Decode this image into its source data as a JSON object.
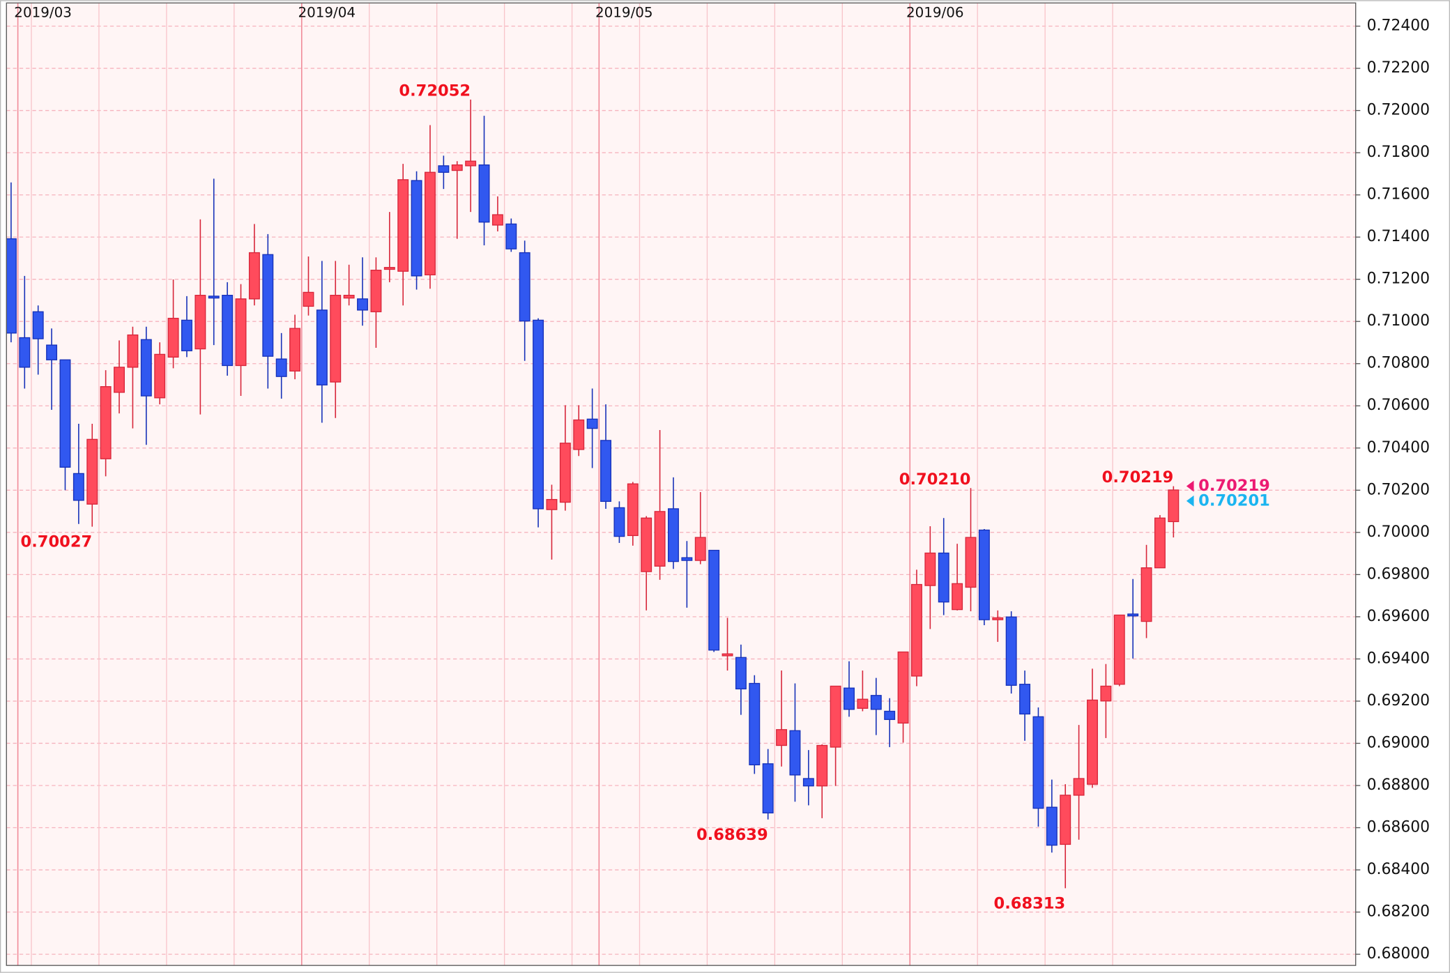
{
  "chart_data": {
    "type": "candlestick",
    "categories": [
      null,
      "2019/03",
      null,
      null,
      null,
      null,
      null,
      null,
      null,
      null,
      null,
      null,
      null,
      null,
      null,
      null,
      null,
      null,
      null,
      null,
      null,
      null,
      "2019/04",
      null,
      null,
      null,
      null,
      null,
      null,
      null,
      null,
      null,
      null,
      null,
      null,
      null,
      null,
      null,
      null,
      null,
      null,
      null,
      null,
      null,
      "2019/05",
      null,
      null,
      null,
      null,
      null,
      null,
      null,
      null,
      null,
      null,
      null,
      null,
      null,
      null,
      null,
      null,
      null,
      null,
      null,
      null,
      null,
      null,
      "2019/06",
      null,
      null,
      null,
      null,
      null,
      null,
      null,
      null,
      null,
      null,
      null,
      null,
      null,
      null,
      null,
      null,
      null,
      null,
      null
    ],
    "open": [
      0.71392,
      0.70923,
      0.71046,
      0.70888,
      0.70818,
      0.70279,
      0.70134,
      0.70349,
      0.70664,
      0.70783,
      0.70914,
      0.70638,
      0.70831,
      0.71006,
      0.7087,
      0.7112,
      0.71124,
      0.70791,
      0.71107,
      0.71317,
      0.70822,
      0.70765,
      0.71072,
      0.71054,
      0.70713,
      0.71111,
      0.71107,
      0.71046,
      0.71247,
      0.71238,
      0.71668,
      0.71221,
      0.71738,
      0.71716,
      0.71738,
      0.71742,
      0.71457,
      0.71462,
      0.71326,
      0.71006,
      0.70108,
      0.70143,
      0.70393,
      0.70537,
      0.70436,
      0.70117,
      0.69985,
      0.69814,
      0.6984,
      0.70112,
      0.6988,
      0.69867,
      0.69915,
      0.69415,
      0.69407,
      0.69284,
      0.68903,
      0.6899,
      0.6906,
      0.68833,
      0.68798,
      0.68982,
      0.69262,
      0.69166,
      0.69227,
      0.69152,
      0.69096,
      0.69319,
      0.69748,
      0.69902,
      0.69634,
      0.6974,
      0.70011,
      0.69586,
      0.69599,
      0.6928,
      0.69126,
      0.68697,
      0.68521,
      0.68754,
      0.68806,
      0.69201,
      0.6928,
      0.69613,
      0.69578,
      0.69832,
      0.70051
    ],
    "high": [
      0.71659,
      0.71216,
      0.71076,
      0.70967,
      0.70818,
      0.70515,
      0.70515,
      0.70769,
      0.7091,
      0.70975,
      0.70975,
      0.70901,
      0.71199,
      0.7112,
      0.71484,
      0.71677,
      0.71186,
      0.71177,
      0.71462,
      0.71414,
      0.70945,
      0.71032,
      0.71308,
      0.71287,
      0.71287,
      0.71269,
      0.71304,
      0.71304,
      0.71519,
      0.71747,
      0.71712,
      0.71931,
      0.71786,
      0.7176,
      0.72052,
      0.71975,
      0.71593,
      0.71488,
      0.71383,
      0.71015,
      0.70226,
      0.70603,
      0.70603,
      0.70682,
      0.70607,
      0.70147,
      0.70239,
      0.70077,
      0.70485,
      0.70261,
      0.69959,
      0.70191,
      0.69915,
      0.69595,
      0.69468,
      0.69323,
      0.68973,
      0.69345,
      0.69284,
      0.68968,
      0.68995,
      0.69271,
      0.69389,
      0.69345,
      0.6931,
      0.69214,
      0.69433,
      0.69823,
      0.70029,
      0.70068,
      0.69946,
      0.7021,
      0.70016,
      0.6963,
      0.69626,
      0.69345,
      0.6917,
      0.68828,
      0.68806,
      0.69087,
      0.69354,
      0.69376,
      0.69608,
      0.69779,
      0.69941,
      0.70082,
      0.70219
    ],
    "low": [
      0.70901,
      0.70682,
      0.70748,
      0.70581,
      0.702,
      0.7004,
      0.70027,
      0.70266,
      0.70564,
      0.70493,
      0.70415,
      0.70607,
      0.70778,
      0.70831,
      0.70559,
      0.70888,
      0.70743,
      0.70647,
      0.71076,
      0.70682,
      0.70634,
      0.70726,
      0.71028,
      0.7052,
      0.70542,
      0.71076,
      0.7098,
      0.70875,
      0.71186,
      0.71076,
      0.71151,
      0.71155,
      0.71628,
      0.71392,
      0.71519,
      0.71361,
      0.71427,
      0.7133,
      0.70813,
      0.70024,
      0.69871,
      0.70103,
      0.70362,
      0.70305,
      0.70112,
      0.6995,
      0.69937,
      0.6963,
      0.69775,
      0.69827,
      0.69643,
      0.69849,
      0.69433,
      0.69345,
      0.69135,
      0.68855,
      0.68639,
      0.6889,
      0.68723,
      0.68706,
      0.68645,
      0.68798,
      0.69126,
      0.69152,
      0.69039,
      0.68982,
      0.69003,
      0.69271,
      0.69542,
      0.69608,
      0.6963,
      0.69626,
      0.6956,
      0.69481,
      0.69236,
      0.69012,
      0.68605,
      0.68482,
      0.68313,
      0.68543,
      0.68789,
      0.69025,
      0.69271,
      0.69402,
      0.69499,
      0.69832,
      0.69976
    ],
    "close": [
      0.70945,
      0.70783,
      0.70918,
      0.70818,
      0.70309,
      0.70152,
      0.70441,
      0.70691,
      0.70783,
      0.70936,
      0.70647,
      0.70844,
      0.71015,
      0.70861,
      0.71124,
      0.71111,
      0.70791,
      0.71107,
      0.71326,
      0.70835,
      0.70739,
      0.70967,
      0.71138,
      0.70699,
      0.71124,
      0.71124,
      0.71054,
      0.71243,
      0.71256,
      0.71672,
      0.71216,
      0.71707,
      0.71707,
      0.71742,
      0.7176,
      0.71471,
      0.71506,
      0.71344,
      0.71002,
      0.70112,
      0.70156,
      0.70423,
      0.70533,
      0.70493,
      0.70147,
      0.69981,
      0.7023,
      0.70068,
      0.70099,
      0.69862,
      0.69867,
      0.69976,
      0.69442,
      0.69424,
      0.69258,
      0.68898,
      0.6867,
      0.69065,
      0.6885,
      0.68798,
      0.6899,
      0.69271,
      0.69161,
      0.69209,
      0.69161,
      0.69113,
      0.69433,
      0.69753,
      0.69902,
      0.6967,
      0.69757,
      0.69976,
      0.69586,
      0.69595,
      0.69275,
      0.69139,
      0.68692,
      0.68517,
      0.68754,
      0.68833,
      0.69205,
      0.69271,
      0.69608,
      0.69604,
      0.69832,
      0.70068,
      0.70201
    ],
    "up_color": "#ff4b5c",
    "up_edge": "#d7263a",
    "down_color": "#3158f0",
    "down_edge": "#1631b8",
    "ylim": [
      0.67947,
      0.7251
    ],
    "yticks": [
      {
        "value": 0.68,
        "label": "0.68000"
      },
      {
        "value": 0.682,
        "label": "0.68200"
      },
      {
        "value": 0.684,
        "label": "0.68400"
      },
      {
        "value": 0.686,
        "label": "0.68600"
      },
      {
        "value": 0.688,
        "label": "0.68800"
      },
      {
        "value": 0.69,
        "label": "0.69000"
      },
      {
        "value": 0.692,
        "label": "0.69200"
      },
      {
        "value": 0.694,
        "label": "0.69400"
      },
      {
        "value": 0.696,
        "label": "0.69600"
      },
      {
        "value": 0.698,
        "label": "0.69800"
      },
      {
        "value": 0.7,
        "label": "0.70000"
      },
      {
        "value": 0.702,
        "label": "0.70200"
      },
      {
        "value": 0.704,
        "label": "0.70400"
      },
      {
        "value": 0.706,
        "label": "0.70600"
      },
      {
        "value": 0.708,
        "label": "0.70800"
      },
      {
        "value": 0.71,
        "label": "0.71000"
      },
      {
        "value": 0.712,
        "label": "0.71200"
      },
      {
        "value": 0.714,
        "label": "0.71400"
      },
      {
        "value": 0.716,
        "label": "0.71600"
      },
      {
        "value": 0.718,
        "label": "0.71800"
      },
      {
        "value": 0.72,
        "label": "0.72000"
      },
      {
        "value": 0.722,
        "label": "0.72200"
      },
      {
        "value": 0.724,
        "label": "0.72400"
      }
    ],
    "grid": true,
    "annotations": [
      {
        "value": 0.72052,
        "index": 34
      },
      {
        "value": 0.70027,
        "index": 6
      },
      {
        "value": 0.68639,
        "index": 56
      },
      {
        "value": 0.7021,
        "label": "0.70210",
        "index": 71
      },
      {
        "value": 0.68313,
        "index": 78
      },
      {
        "value": 0.70219,
        "index": 86
      }
    ],
    "annotation_color": "#f0101e",
    "price_markers": [
      {
        "value": 0.70219,
        "color": "#ec1a72"
      },
      {
        "value": 0.70201,
        "color": "#1ab4f0"
      }
    ]
  }
}
